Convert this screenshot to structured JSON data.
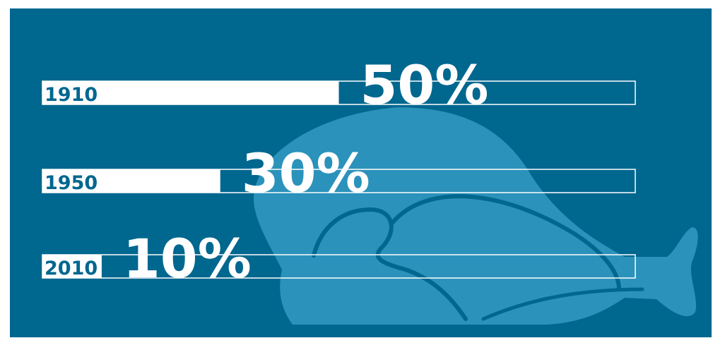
{
  "colors": {
    "background": "#00678f",
    "bar": "#ffffff",
    "illustration": "#2b92bb"
  },
  "illustration": {
    "icon": "roast-turkey-icon"
  },
  "chart_data": {
    "type": "bar",
    "orientation": "horizontal",
    "categories": [
      "1910",
      "1950",
      "2010"
    ],
    "values": [
      50,
      30,
      10
    ],
    "value_labels": [
      "50%",
      "30%",
      "10%"
    ],
    "title": "",
    "xlabel": "",
    "ylabel": "",
    "xlim": [
      0,
      100
    ],
    "grid": false,
    "legend": "none"
  }
}
